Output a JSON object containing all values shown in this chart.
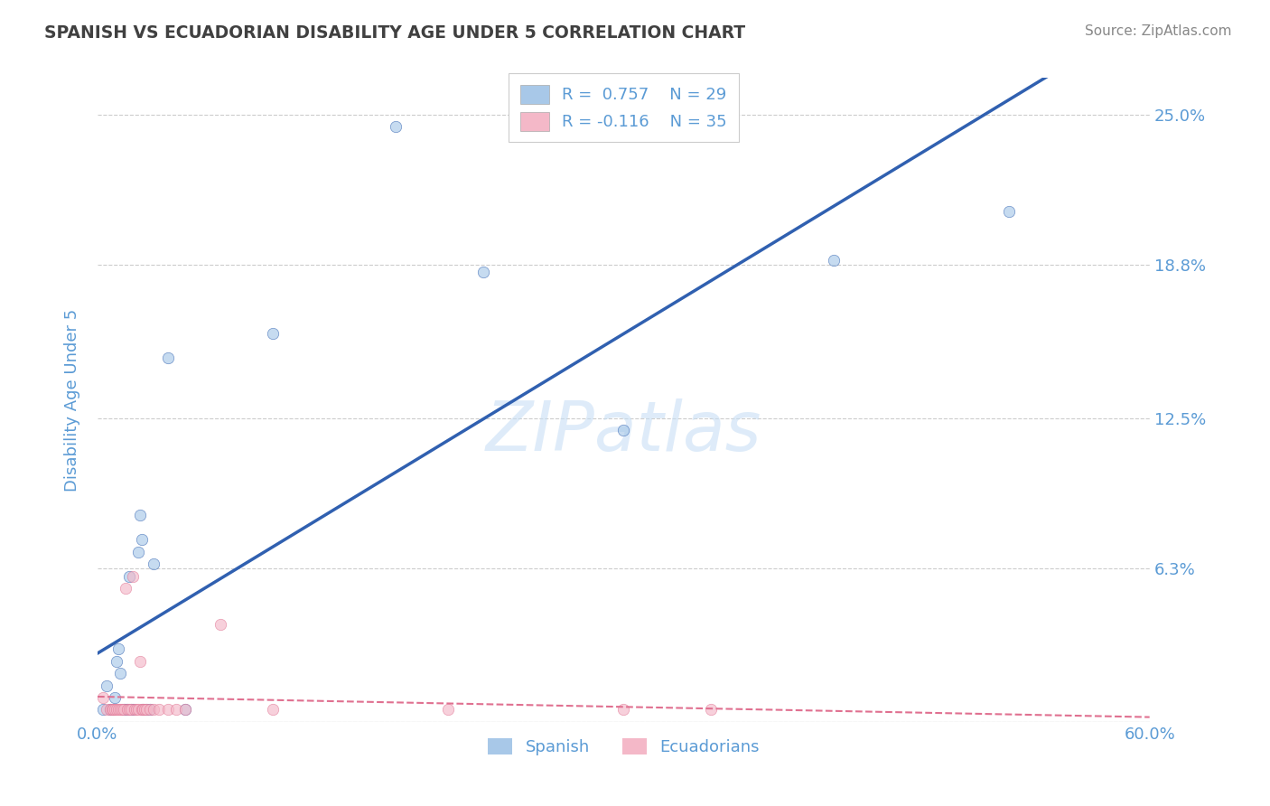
{
  "title": "SPANISH VS ECUADORIAN DISABILITY AGE UNDER 5 CORRELATION CHART",
  "source": "Source: ZipAtlas.com",
  "xlabel": "",
  "ylabel": "Disability Age Under 5",
  "xlim": [
    0.0,
    0.6
  ],
  "ylim": [
    0.0,
    0.265
  ],
  "xticks": [
    0.0,
    0.1,
    0.2,
    0.3,
    0.4,
    0.5,
    0.6
  ],
  "xticklabels": [
    "0.0%",
    "",
    "",
    "",
    "",
    "",
    "60.0%"
  ],
  "yticks": [
    0.0,
    0.063,
    0.125,
    0.188,
    0.25
  ],
  "yticklabels": [
    "",
    "6.3%",
    "12.5%",
    "18.8%",
    "25.0%"
  ],
  "spanish_color": "#a8c8e8",
  "ecuadorian_color": "#f4b8c8",
  "regression_blue": "#3060b0",
  "regression_pink": "#e07090",
  "watermark_color": "#c8dff5",
  "legend_label1": "R =  0.757    N = 29",
  "legend_label2": "R = -0.116    N = 35",
  "legend_label1_parts": [
    "R = ",
    "0.757",
    "    N = ",
    "29"
  ],
  "legend_label2_parts": [
    "R = ",
    "-0.116",
    "    N = ",
    "35"
  ],
  "spanish_x": [
    0.005,
    0.01,
    0.012,
    0.013,
    0.016,
    0.018,
    0.02,
    0.023,
    0.024,
    0.025,
    0.028,
    0.032,
    0.04,
    0.05,
    0.1,
    0.17,
    0.22,
    0.3,
    0.42,
    0.52,
    0.003,
    0.007,
    0.009,
    0.011,
    0.015,
    0.017,
    0.019,
    0.026,
    0.03
  ],
  "spanish_y": [
    0.015,
    0.01,
    0.03,
    0.02,
    0.005,
    0.06,
    0.005,
    0.07,
    0.085,
    0.075,
    0.005,
    0.065,
    0.15,
    0.005,
    0.16,
    0.245,
    0.185,
    0.12,
    0.19,
    0.21,
    0.005,
    0.005,
    0.005,
    0.025,
    0.005,
    0.005,
    0.005,
    0.005,
    0.005
  ],
  "ecuadorian_x": [
    0.003,
    0.005,
    0.007,
    0.008,
    0.009,
    0.01,
    0.011,
    0.012,
    0.013,
    0.014,
    0.015,
    0.016,
    0.017,
    0.018,
    0.019,
    0.02,
    0.021,
    0.022,
    0.023,
    0.024,
    0.025,
    0.026,
    0.027,
    0.028,
    0.03,
    0.032,
    0.035,
    0.04,
    0.045,
    0.05,
    0.07,
    0.1,
    0.2,
    0.3,
    0.35
  ],
  "ecuadorian_y": [
    0.01,
    0.005,
    0.005,
    0.005,
    0.005,
    0.005,
    0.005,
    0.005,
    0.005,
    0.005,
    0.005,
    0.055,
    0.005,
    0.005,
    0.005,
    0.06,
    0.005,
    0.005,
    0.005,
    0.025,
    0.005,
    0.005,
    0.005,
    0.005,
    0.005,
    0.005,
    0.005,
    0.005,
    0.005,
    0.005,
    0.04,
    0.005,
    0.005,
    0.005,
    0.005
  ],
  "background_color": "#ffffff",
  "grid_color": "#cccccc",
  "title_color": "#404040",
  "axis_label_color": "#5b9bd5",
  "tick_label_color": "#5b9bd5",
  "marker_size": 80,
  "marker_alpha": 0.65
}
